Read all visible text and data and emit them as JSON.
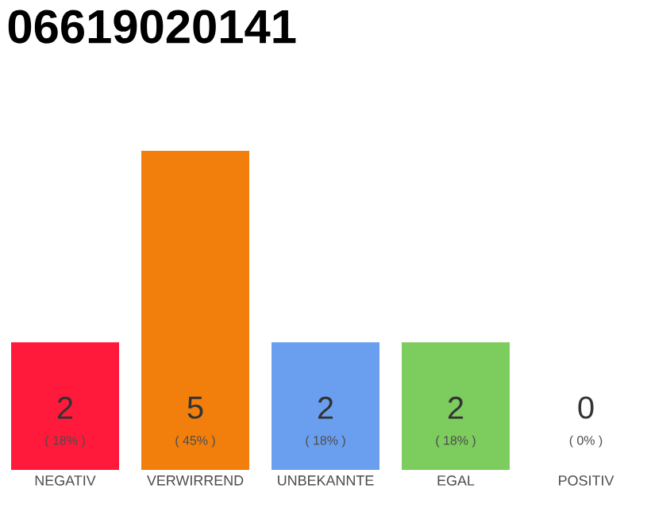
{
  "chart_data": {
    "type": "bar",
    "title": "06619020141",
    "categories": [
      "NEGATIV",
      "VERWIRREND",
      "UNBEKANNTE",
      "EGAL",
      "POSITIV"
    ],
    "values": [
      2,
      5,
      2,
      2,
      0
    ],
    "colors": [
      "#ff1a3c",
      "#f27f0c",
      "#6a9ff0",
      "#7dcc5e",
      "#b0b0b0"
    ],
    "value_labels": [
      "2",
      "5",
      "2",
      "2",
      "0"
    ],
    "annotations": [
      "( 18% )",
      "( 45% )",
      "( 18% )",
      "( 18% )",
      "( 0% )"
    ]
  }
}
